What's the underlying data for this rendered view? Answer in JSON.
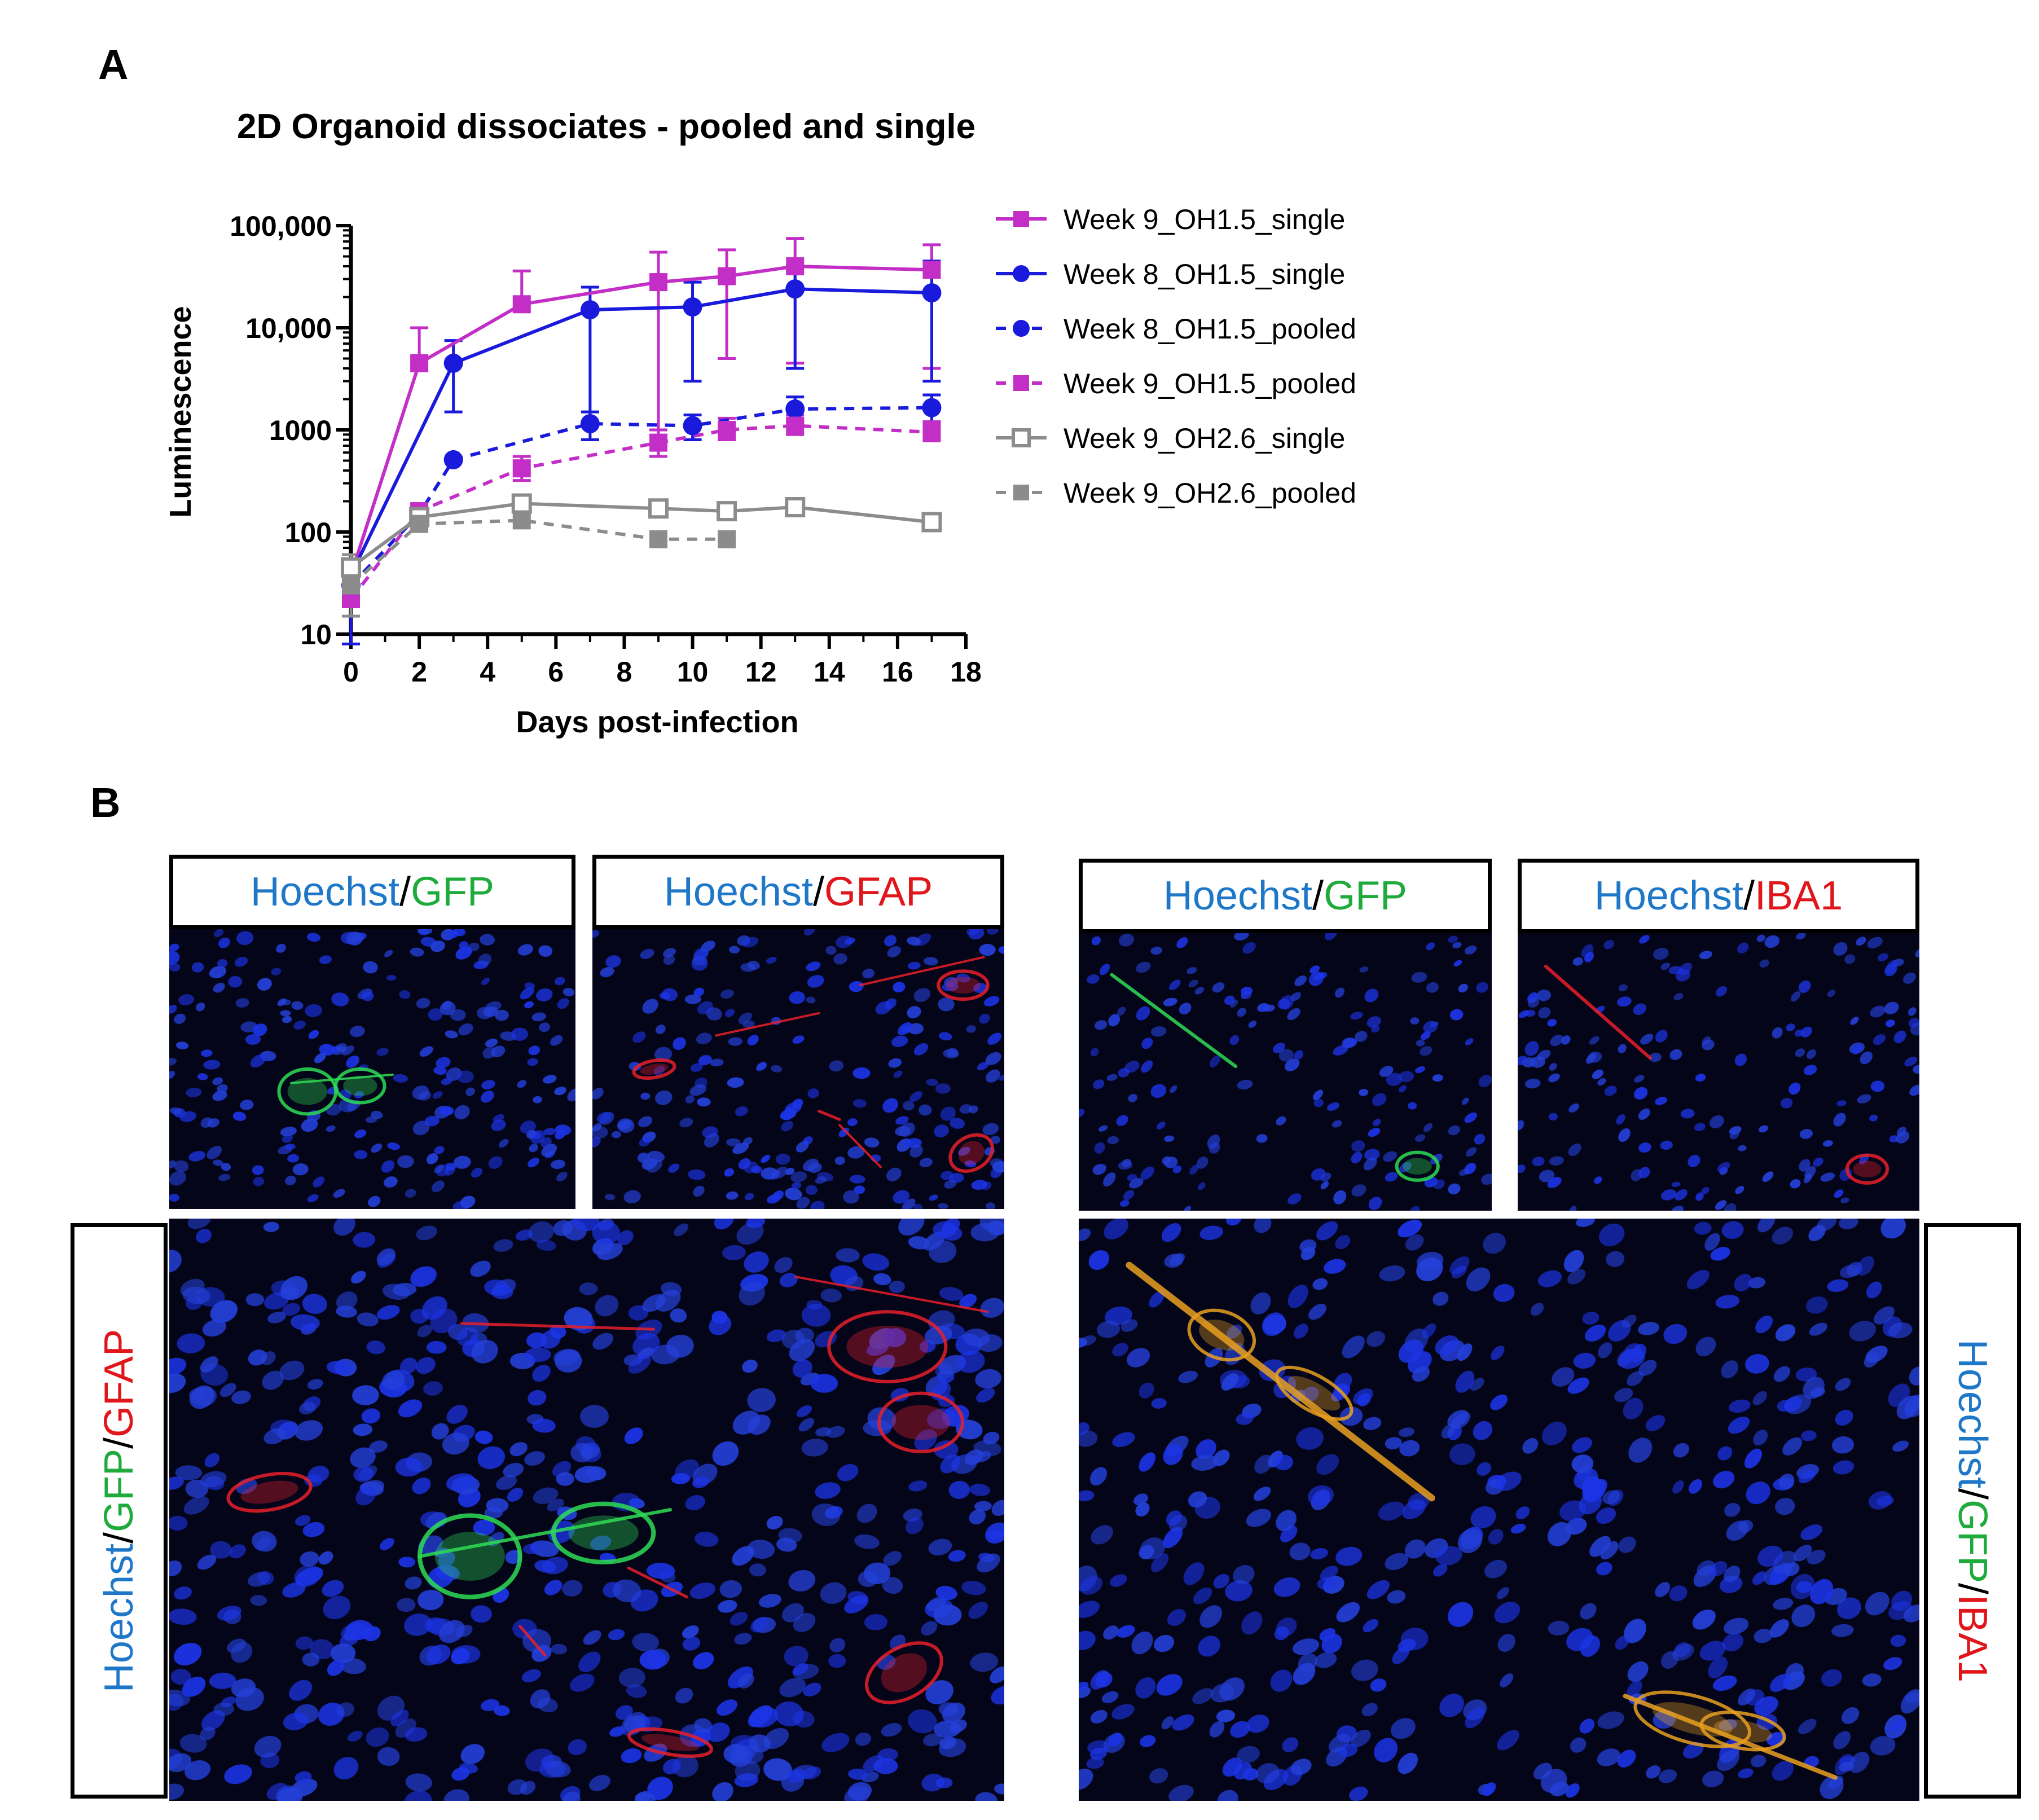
{
  "panel_a_label": "A",
  "panel_b_label": "B",
  "colors": {
    "magenta": "#c22ec6",
    "blue": "#1a1add",
    "gray": "#8c8c8c",
    "hoechst": "#1f77c8",
    "gfp": "#1faa3c",
    "red_marker": "#e0161b"
  },
  "chart_data": {
    "type": "line",
    "title": "2D Organoid dissociates - pooled and single",
    "xlabel": "Days post-infection",
    "ylabel": "Luminescence",
    "xlim": [
      0,
      18
    ],
    "ylim": [
      10,
      100000
    ],
    "yscale": "log",
    "x_ticks": [
      "0",
      "2",
      "4",
      "6",
      "8",
      "10",
      "12",
      "14",
      "16",
      "18"
    ],
    "y_ticks": [
      "10",
      "100",
      "1000",
      "10,000",
      "100,000"
    ],
    "legend_position": "right",
    "series": [
      {
        "name": "Week 9_OH1.5_single",
        "color": "#c22ec6",
        "marker": "square-filled",
        "dash": false,
        "points": [
          [
            0,
            38,
            8
          ],
          [
            2,
            4500,
            10000
          ],
          [
            5,
            17000,
            36000
          ],
          [
            9,
            28000,
            55000
          ],
          [
            11,
            32000,
            58000
          ],
          [
            13,
            40000,
            75000
          ],
          [
            17,
            37000,
            65000
          ]
        ],
        "lower_errors": [
          [
            9,
            800
          ],
          [
            11,
            5000
          ],
          [
            13,
            4500
          ],
          [
            17,
            4000
          ]
        ]
      },
      {
        "name": "Week 8_OH1.5_single",
        "color": "#1a1add",
        "marker": "circle-filled",
        "dash": false,
        "points": [
          [
            0,
            38,
            8
          ],
          [
            3,
            4500,
            7500
          ],
          [
            7,
            15000,
            25000
          ],
          [
            10,
            16000,
            28000
          ],
          [
            13,
            24000,
            40000
          ],
          [
            17,
            22000,
            45000
          ]
        ],
        "lower_errors": [
          [
            3,
            1500
          ],
          [
            7,
            1200
          ],
          [
            10,
            3000
          ],
          [
            13,
            4000
          ],
          [
            17,
            3000
          ]
        ]
      },
      {
        "name": "Week 8_OH1.5_pooled",
        "color": "#1a1add",
        "marker": "circle-filled",
        "dash": true,
        "points": [
          [
            0,
            30,
            null
          ],
          [
            2,
            150,
            null
          ],
          [
            3,
            510,
            null
          ],
          [
            7,
            1150,
            1500
          ],
          [
            10,
            1100,
            1400
          ],
          [
            13,
            1600,
            2100
          ],
          [
            17,
            1650,
            2200
          ]
        ],
        "lower_errors": [
          [
            7,
            800
          ],
          [
            10,
            800
          ],
          [
            13,
            1200
          ],
          [
            17,
            1200
          ]
        ]
      },
      {
        "name": "Week 9_OH1.5_pooled",
        "color": "#c22ec6",
        "marker": "square-filled",
        "dash": true,
        "points": [
          [
            0,
            22,
            null
          ],
          [
            2,
            160,
            null
          ],
          [
            5,
            420,
            550
          ],
          [
            9,
            750,
            1000
          ],
          [
            11,
            1000,
            1300
          ],
          [
            13,
            1100,
            1400
          ],
          [
            17,
            950,
            1200
          ]
        ],
        "lower_errors": [
          [
            5,
            320
          ],
          [
            9,
            550
          ],
          [
            11,
            800
          ],
          [
            13,
            900
          ],
          [
            17,
            780
          ]
        ]
      },
      {
        "name": "Week 9_OH2.6_single",
        "color": "#8c8c8c",
        "marker": "square-open",
        "dash": false,
        "points": [
          [
            0,
            45,
            60
          ],
          [
            2,
            140,
            null
          ],
          [
            5,
            190,
            null
          ],
          [
            9,
            170,
            null
          ],
          [
            11,
            160,
            null
          ],
          [
            13,
            175,
            null
          ],
          [
            17,
            125,
            null
          ]
        ],
        "lower_errors": []
      },
      {
        "name": "Week 9_OH2.6_pooled",
        "color": "#8c8c8c",
        "marker": "square-filled",
        "dash": true,
        "points": [
          [
            0,
            30,
            null
          ],
          [
            2,
            120,
            null
          ],
          [
            5,
            130,
            null
          ],
          [
            9,
            85,
            null
          ],
          [
            11,
            85,
            null
          ]
        ],
        "lower_errors": [
          [
            0,
            15
          ]
        ]
      }
    ]
  },
  "panel_b": {
    "captions": {
      "top_left_1": {
        "a": "Hoechst",
        "sep": "/",
        "b": "GFP"
      },
      "top_left_2": {
        "a": "Hoechst",
        "sep": "/",
        "b": "GFAP"
      },
      "top_right_1": {
        "a": "Hoechst",
        "sep": "/",
        "b": "GFP"
      },
      "top_right_2": {
        "a": "Hoechst",
        "sep": "/",
        "b": "IBA1"
      },
      "left_vertical": {
        "a": "Hoechst",
        "sep1": "/",
        "b": "GFP",
        "sep2": "/",
        "c": "GFAP"
      },
      "right_vertical": {
        "a": "Hoechst",
        "sep1": "/",
        "b": "GFP",
        "sep2": "/",
        "c": "IBA1"
      }
    }
  }
}
